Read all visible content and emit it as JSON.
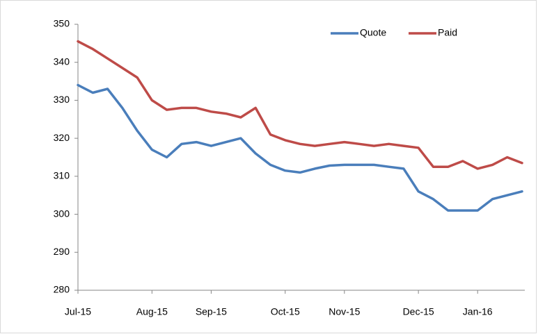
{
  "chart_data": {
    "type": "line",
    "categories": [
      "Jul-15",
      null,
      null,
      null,
      null,
      "Aug-15",
      null,
      null,
      null,
      "Sep-15",
      null,
      null,
      null,
      null,
      "Oct-15",
      null,
      null,
      null,
      "Nov-15",
      null,
      null,
      null,
      null,
      "Dec-15",
      null,
      null,
      null,
      "Jan-16",
      null,
      null,
      null
    ],
    "series": [
      {
        "name": "Quote",
        "color": "#4a7ebb",
        "values": [
          334,
          332,
          333,
          328,
          322,
          317,
          315,
          318.5,
          319,
          318,
          319,
          320,
          316,
          313,
          311.5,
          311,
          312,
          312.8,
          313,
          313,
          313,
          312.5,
          312,
          306,
          304,
          301,
          301,
          301,
          304,
          305,
          306
        ]
      },
      {
        "name": "Paid",
        "color": "#be4b48",
        "values": [
          345.5,
          343.5,
          341,
          338.5,
          336,
          330,
          327.5,
          328,
          328,
          327,
          326.5,
          325.5,
          328,
          321,
          319.5,
          318.5,
          318,
          318.5,
          319,
          318.5,
          318,
          318.5,
          318,
          317.5,
          312.5,
          312.5,
          314,
          312,
          313,
          315,
          313.5
        ]
      }
    ],
    "ylim": [
      280,
      350
    ],
    "yticks": [
      280,
      290,
      300,
      310,
      320,
      330,
      340,
      350
    ],
    "grid": false,
    "legend": "top-right"
  }
}
